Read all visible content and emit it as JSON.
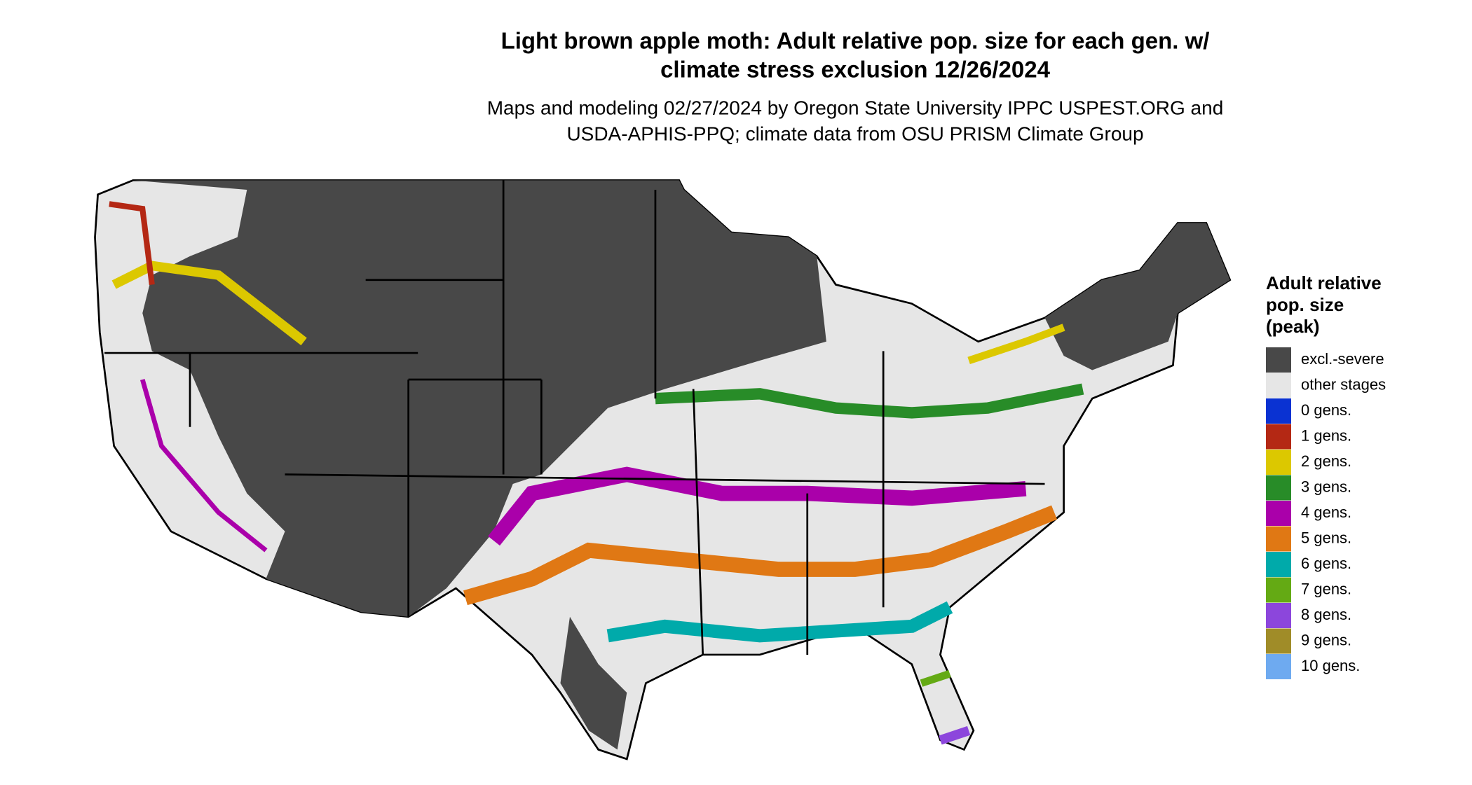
{
  "title": [
    "Light brown apple moth: Adult relative pop. size for each gen. w/",
    "climate stress exclusion 12/26/2024"
  ],
  "subtitle": [
    "Maps and modeling 02/27/2024 by Oregon State University IPPC USPEST.ORG and",
    "USDA-APHIS-PPQ; climate data from OSU PRISM Climate Group"
  ],
  "legend": {
    "title": [
      "Adult relative",
      "pop. size",
      "(peak)"
    ],
    "items": [
      {
        "label": "excl.-severe",
        "color": "#484848"
      },
      {
        "label": "other stages",
        "color": "#e6e6e6"
      },
      {
        "label": "0 gens.",
        "color": "#0a32d2"
      },
      {
        "label": "1 gens.",
        "color": "#b42814"
      },
      {
        "label": "2 gens.",
        "color": "#dcc800"
      },
      {
        "label": "3 gens.",
        "color": "#288c28"
      },
      {
        "label": "4 gens.",
        "color": "#aa00aa"
      },
      {
        "label": "5 gens.",
        "color": "#e07814"
      },
      {
        "label": "6 gens.",
        "color": "#00aaaa"
      },
      {
        "label": "7 gens.",
        "color": "#64aa14"
      },
      {
        "label": "8 gens.",
        "color": "#8c46dc"
      },
      {
        "label": "9 gens.",
        "color": "#a08c28"
      },
      {
        "label": "10 gens.",
        "color": "#6eaaf0"
      }
    ]
  }
}
